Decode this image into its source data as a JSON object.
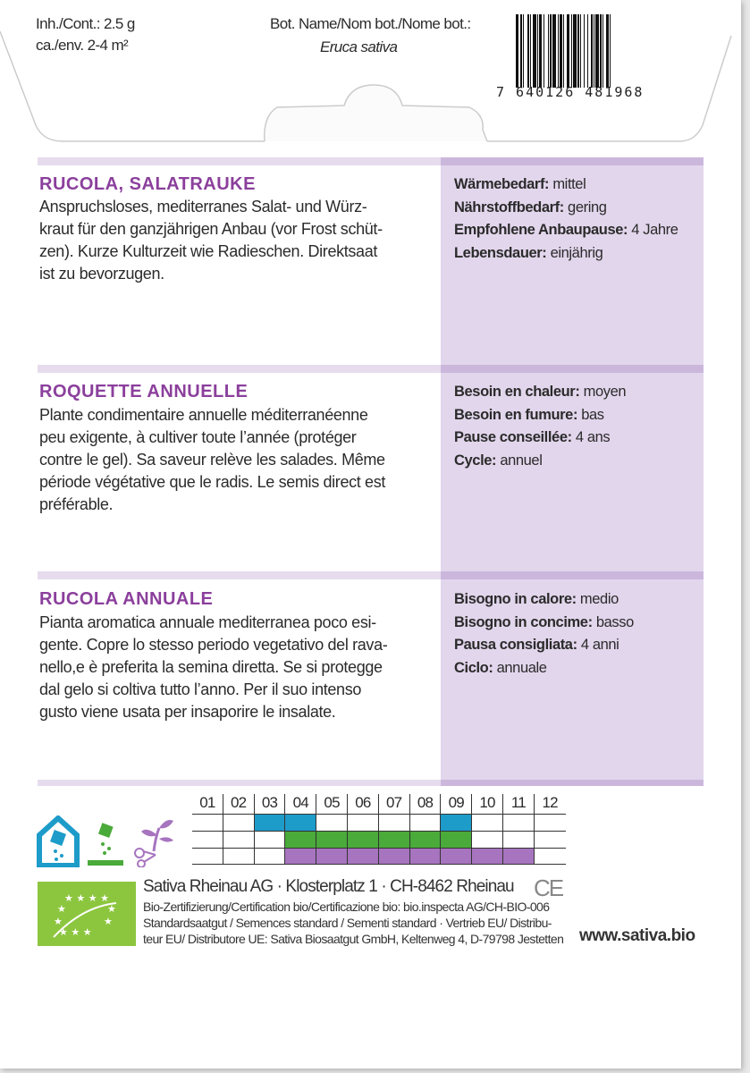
{
  "header": {
    "content_line1": "Inh./Cont.: 2.5 g",
    "content_line2": "ca./env. 2-4 m²",
    "bot_name_label": "Bot. Name/Nom bot./Nome bot.:",
    "bot_name": "Eruca sativa",
    "barcode_number": "7 640126 481968"
  },
  "sections": [
    {
      "title": "RUCOLA, SALATRAUKE",
      "lines": [
        "Anspruchsloses, mediterranes Salat- und Würz-",
        "kraut für den ganzjährigen Anbau (vor Frost schüt-",
        "zen).  Kurze Kulturzeit wie Radieschen. Direktsaat",
        "ist zu bevorzugen."
      ],
      "props": [
        {
          "label": "Wärmebedarf:",
          "value": "mittel"
        },
        {
          "label": "Nährstoffbedarf:",
          "value": "gering"
        },
        {
          "label": "Empfohlene Anbaupause:",
          "value": "4 Jahre"
        },
        {
          "label": "Lebensdauer:",
          "value": "einjährig"
        }
      ]
    },
    {
      "title": "ROQUETTE ANNUELLE",
      "lines": [
        "Plante condimentaire annuelle méditerranéenne",
        "peu exigente, à cultiver toute l’année (protéger",
        "contre le gel). Sa saveur relève les salades. Même",
        "période végétative que le radis. Le semis direct est",
        "préférable."
      ],
      "props": [
        {
          "label": "Besoin en chaleur:",
          "value": "moyen"
        },
        {
          "label": "Besoin en fumure:",
          "value": "bas"
        },
        {
          "label": "Pause conseillée:",
          "value": "4 ans"
        },
        {
          "label": "Cycle:",
          "value": "annuel"
        }
      ]
    },
    {
      "title": "RUCOLA ANNUALE",
      "lines": [
        "Pianta aromatica annuale mediterranea poco esi-",
        "gente. Copre lo stesso periodo vegetativo del rava-",
        "nello,e è preferita la semina diretta. Se si protegge",
        "dal gelo si coltiva tutto l’anno. Per il suo intenso",
        "gusto viene usata per insaporire le insalate."
      ],
      "props": [
        {
          "label": "Bisogno in calore:",
          "value": "medio"
        },
        {
          "label": "Bisogno in concime:",
          "value": "basso"
        },
        {
          "label": "Pausa consigliata:",
          "value": "4 anni"
        },
        {
          "label": "Ciclo:",
          "value": "annuale"
        }
      ]
    }
  ],
  "calendar": {
    "months": [
      "01",
      "02",
      "03",
      "04",
      "05",
      "06",
      "07",
      "08",
      "09",
      "10",
      "11",
      "12"
    ],
    "rows": [
      {
        "icon": "greenhouse-sowing-icon",
        "color": "#1d9bc9",
        "months": [
          3,
          4,
          9
        ]
      },
      {
        "icon": "outdoor-sowing-icon",
        "color": "#4aaa3a",
        "months": [
          4,
          5,
          6,
          7,
          8,
          9
        ]
      },
      {
        "icon": "harvest-icon",
        "color": "#a774bf",
        "months": [
          4,
          5,
          6,
          7,
          8,
          9,
          10,
          11
        ]
      }
    ]
  },
  "footer": {
    "company": "Sativa Rheinau AG · Klosterplatz 1 · CH-8462 Rheinau",
    "line2": "Bio-Zertifizierung/Certification bio/Certificazione bio: bio.inspecta AG/CH-BIO-006",
    "line3": "Standardsaatgut / Semences standard / Sementi standard · Vertrieb EU/ Distribu-",
    "line4": "teur EU/ Distributore UE: Sativa Biosaatgut GmbH, Keltenweg 4, D-79798 Jestetten",
    "website": "www.sativa.bio",
    "ce_mark": "CE"
  },
  "colors": {
    "accent": "#8b3f9c",
    "panel": "#e2d6ec",
    "eu_logo": "#8cc63f"
  }
}
